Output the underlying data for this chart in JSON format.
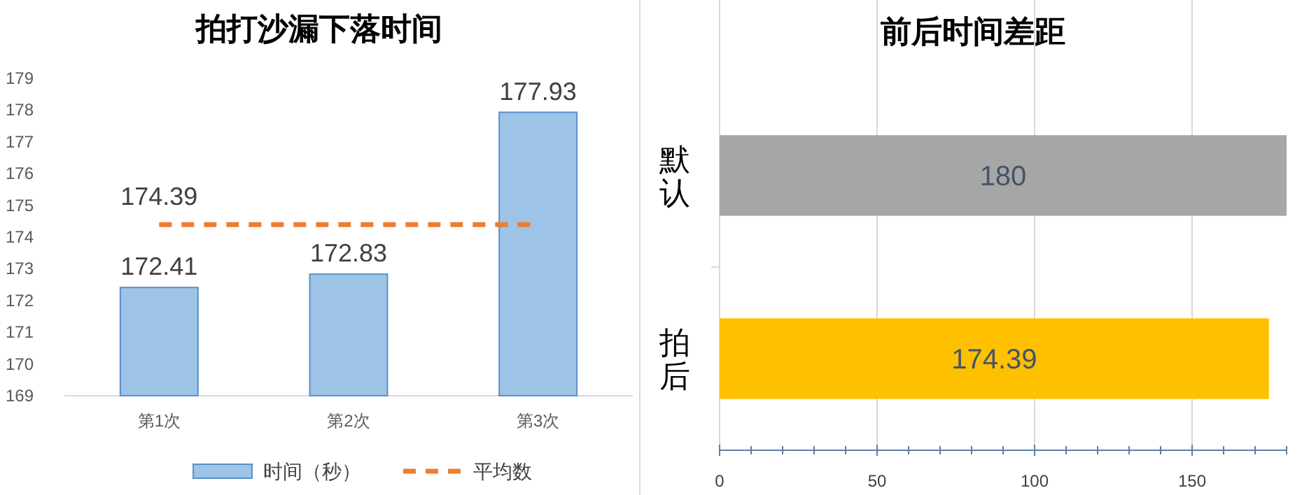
{
  "chart_data": [
    {
      "type": "bar",
      "title": "拍打沙漏下落时间",
      "categories": [
        "第1次",
        "第2次",
        "第3次"
      ],
      "series": [
        {
          "name": "时间（秒）",
          "color": "#9dc3e6",
          "values": [
            172.41,
            172.83,
            177.93
          ],
          "value_labels": [
            "172.41",
            "172.83",
            "177.93"
          ]
        },
        {
          "name": "平均数",
          "type": "line",
          "color": "#ed7d31",
          "line_style": "dashed",
          "values": [
            174.39,
            174.39,
            174.39
          ],
          "value_labels": [
            "174.39",
            null,
            null
          ]
        }
      ],
      "ylim": [
        169,
        179
      ],
      "yticks": [
        169,
        170,
        171,
        172,
        173,
        174,
        175,
        176,
        177,
        178,
        179
      ],
      "grid": false,
      "legend": "bottom"
    },
    {
      "type": "bar",
      "orientation": "horizontal",
      "title": "前后时间差距",
      "categories": [
        "默认",
        "拍后"
      ],
      "values": [
        180,
        174.39
      ],
      "colors": [
        "#a6a6a6",
        "#ffc000"
      ],
      "data_labels": true,
      "xlim": [
        0,
        180
      ],
      "xticks": [
        0,
        {
          "value": 10,
          "label": null
        },
        {
          "value": 20,
          "label": null
        },
        {
          "value": 30,
          "label": null
        },
        {
          "value": 40,
          "label": null
        },
        50,
        {
          "value": 60,
          "label": null
        },
        {
          "value": 70,
          "label": null
        },
        {
          "value": 80,
          "label": null
        },
        {
          "value": 90,
          "label": null
        },
        100,
        {
          "value": 110,
          "label": null
        },
        {
          "value": 120,
          "label": null
        },
        {
          "value": 130,
          "label": null
        },
        {
          "value": 140,
          "label": null
        },
        150,
        {
          "value": 160,
          "label": null
        },
        {
          "value": 170,
          "label": null
        },
        {
          "value": 180,
          "label": null
        }
      ],
      "grid": "x"
    }
  ]
}
